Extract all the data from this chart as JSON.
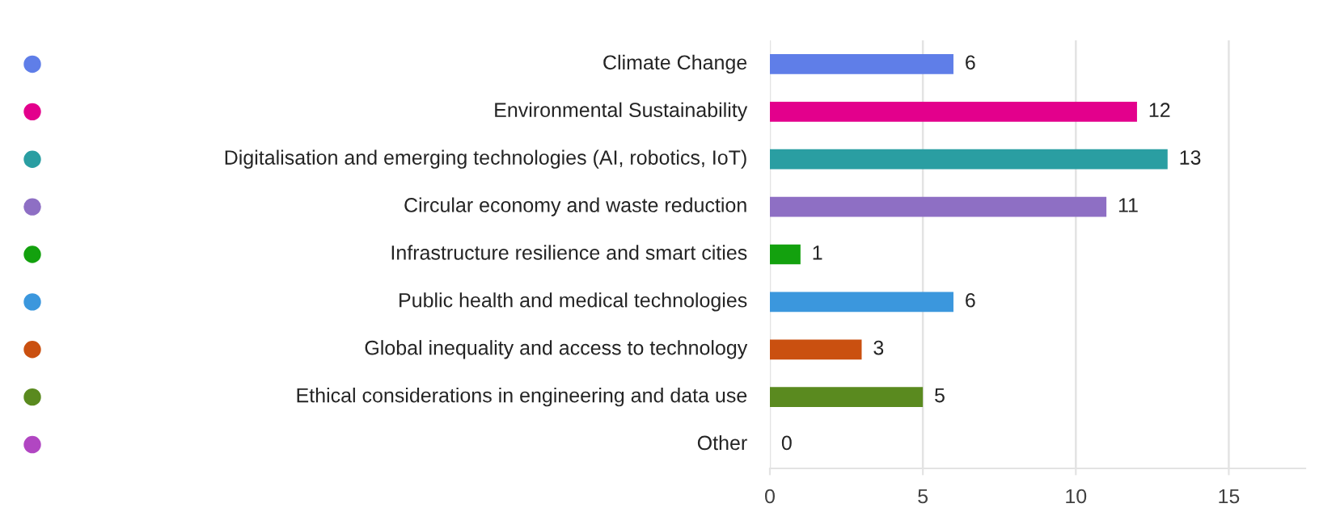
{
  "chart_data": {
    "type": "bar",
    "orientation": "horizontal",
    "categories": [
      "Climate Change",
      "Environmental Sustainability",
      "Digitalisation and emerging technologies (AI, robotics, IoT)",
      "Circular economy and waste reduction",
      "Infrastructure resilience and smart cities",
      "Public health and medical technologies",
      "Global inequality and access to technology",
      "Ethical considerations in engineering and data use",
      "Other"
    ],
    "values": [
      6,
      12,
      13,
      11,
      1,
      6,
      3,
      5,
      0
    ],
    "colors": [
      "#5f7ee8",
      "#e3008c",
      "#2a9ea2",
      "#8e6fc4",
      "#13a10e",
      "#3b97dd",
      "#ca5010",
      "#5a8a1f",
      "#b146c2"
    ],
    "value_labels": [
      "6",
      "12",
      "13",
      "11",
      "1",
      "6",
      "3",
      "5",
      "0"
    ],
    "xlim": [
      0,
      17.5
    ],
    "xticks": [
      0,
      5,
      10,
      15
    ],
    "grid": "x"
  }
}
